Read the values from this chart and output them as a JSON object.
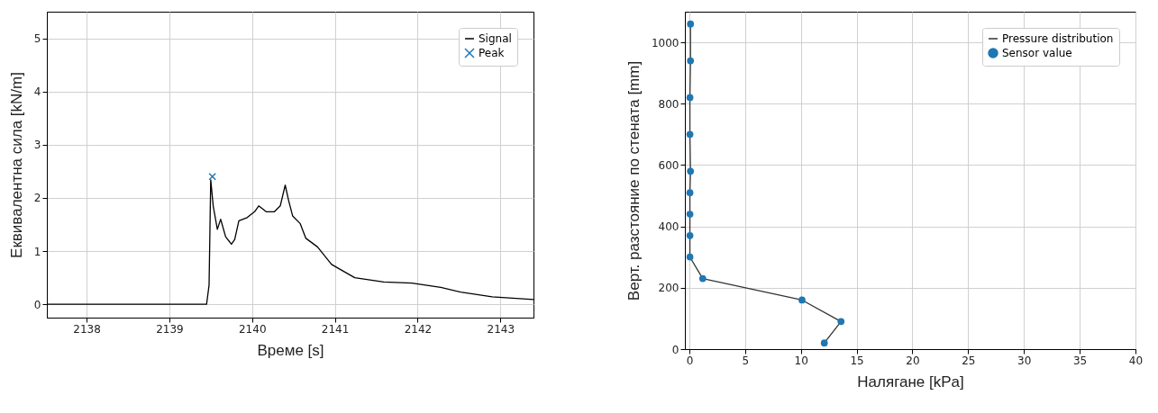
{
  "chart_data": [
    {
      "type": "line",
      "xlabel": "Време [s]",
      "ylabel": "Еквивалентна сила [kN/m]",
      "xlim": [
        2137.52,
        2143.4
      ],
      "ylim": [
        -0.25,
        5.5
      ],
      "xticks": [
        2138,
        2139,
        2140,
        2141,
        2142,
        2143
      ],
      "yticks": [
        0,
        1,
        2,
        3,
        4,
        5
      ],
      "grid": true,
      "legend": "top right",
      "series": [
        {
          "name": "Signal",
          "color": "#000000",
          "x": [
            2137.52,
            2139.45,
            2139.48,
            2139.5,
            2139.53,
            2139.58,
            2139.62,
            2139.68,
            2139.75,
            2139.79,
            2139.84,
            2139.94,
            2140.03,
            2140.08,
            2140.17,
            2140.27,
            2140.34,
            2140.4,
            2140.44,
            2140.49,
            2140.58,
            2140.65,
            2140.79,
            2140.96,
            2141.24,
            2141.59,
            2141.93,
            2142.28,
            2142.52,
            2142.9,
            2143.4
          ],
          "values": [
            0,
            0,
            0.36,
            2.34,
            1.85,
            1.41,
            1.6,
            1.27,
            1.13,
            1.22,
            1.57,
            1.63,
            1.74,
            1.85,
            1.74,
            1.74,
            1.85,
            2.24,
            1.96,
            1.66,
            1.52,
            1.24,
            1.08,
            0.75,
            0.5,
            0.42,
            0.4,
            0.32,
            0.23,
            0.14,
            0.09
          ]
        },
        {
          "name": "Peak",
          "type": "scatter",
          "marker": "cross",
          "color": "#1f77b4",
          "x": [
            2139.52
          ],
          "values": [
            2.4
          ]
        }
      ]
    },
    {
      "type": "line",
      "xlabel": "Налягане [kPa]",
      "ylabel": "Верт. разстояние по стената [mm]",
      "xlim": [
        -0.4,
        40
      ],
      "ylim": [
        0,
        1100
      ],
      "xticks": [
        0,
        5,
        10,
        15,
        20,
        25,
        30,
        35,
        40
      ],
      "yticks": [
        0,
        200,
        400,
        600,
        800,
        1000
      ],
      "grid": true,
      "legend": "top right",
      "series": [
        {
          "name": "Pressure distribution",
          "color": "#333333",
          "x": [
            0.1,
            0.1,
            0.05,
            0.05,
            0.1,
            0.05,
            0.05,
            0.05,
            0.05,
            1.2,
            10.1,
            13.6,
            12.1
          ],
          "values": [
            1060,
            940,
            820,
            700,
            580,
            510,
            440,
            370,
            300,
            230,
            160,
            90,
            20
          ]
        },
        {
          "name": "Sensor value",
          "type": "scatter",
          "marker": "circle",
          "color": "#1f77b4",
          "x": [
            0.1,
            0.1,
            0.05,
            0.05,
            0.1,
            0.05,
            0.05,
            0.05,
            0.05,
            1.2,
            10.1,
            13.6,
            12.1
          ],
          "values": [
            1060,
            940,
            820,
            700,
            580,
            510,
            440,
            370,
            300,
            230,
            160,
            90,
            20
          ]
        }
      ]
    }
  ]
}
